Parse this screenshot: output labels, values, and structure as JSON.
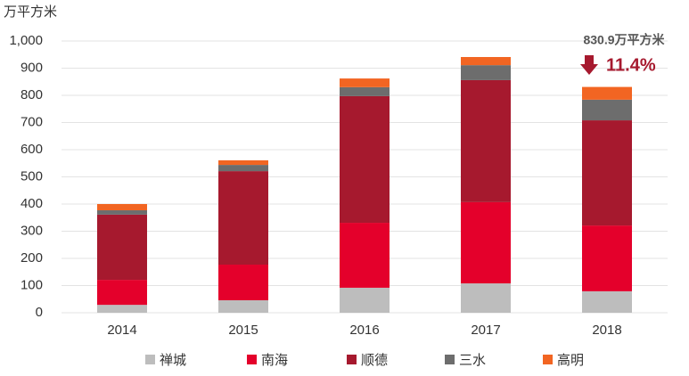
{
  "chart_data": {
    "type": "stacked_bar",
    "y_label": "万平方米",
    "categories": [
      "2014",
      "2015",
      "2016",
      "2017",
      "2018"
    ],
    "series": [
      {
        "name": "禅城",
        "color": "#bdbdbd",
        "values": [
          29,
          46,
          92,
          108,
          79
        ]
      },
      {
        "name": "南海",
        "color": "#e4002b",
        "values": [
          92,
          131,
          239,
          299,
          242
        ]
      },
      {
        "name": "顺德",
        "color": "#a6192e",
        "values": [
          240,
          344,
          466,
          449,
          387
        ]
      },
      {
        "name": "三水",
        "color": "#6d6d6d",
        "values": [
          16,
          23,
          33,
          55,
          76
        ]
      },
      {
        "name": "高明",
        "color": "#f26522",
        "values": [
          23,
          17,
          32,
          30,
          46.9
        ]
      }
    ],
    "ylim": [
      0,
      1000
    ],
    "yticks": [
      0,
      100,
      200,
      300,
      400,
      500,
      600,
      700,
      800,
      900,
      {
        "value": 1000,
        "label": "1,000"
      }
    ],
    "grid": true,
    "annotations": [
      "830.9万平方米",
      "11.4%"
    ]
  }
}
